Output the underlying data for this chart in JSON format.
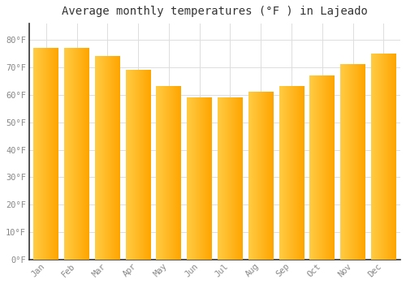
{
  "months": [
    "Jan",
    "Feb",
    "Mar",
    "Apr",
    "May",
    "Jun",
    "Jul",
    "Aug",
    "Sep",
    "Oct",
    "Nov",
    "Dec"
  ],
  "values": [
    77,
    77,
    74,
    69,
    63,
    59,
    59,
    61,
    63,
    67,
    71,
    75
  ],
  "bar_color_left": "#FFCC44",
  "bar_color_right": "#FFA500",
  "background_color": "#FFFFFF",
  "grid_color": "#DDDDDD",
  "title": "Average monthly temperatures (°F ) in Lajeado",
  "title_fontsize": 10,
  "tick_label_color": "#888888",
  "axis_color": "#333333",
  "ylim": [
    0,
    86
  ],
  "yticks": [
    0,
    10,
    20,
    30,
    40,
    50,
    60,
    70,
    80
  ],
  "ytick_labels": [
    "0°F",
    "10°F",
    "20°F",
    "30°F",
    "40°F",
    "50°F",
    "60°F",
    "70°F",
    "80°F"
  ]
}
